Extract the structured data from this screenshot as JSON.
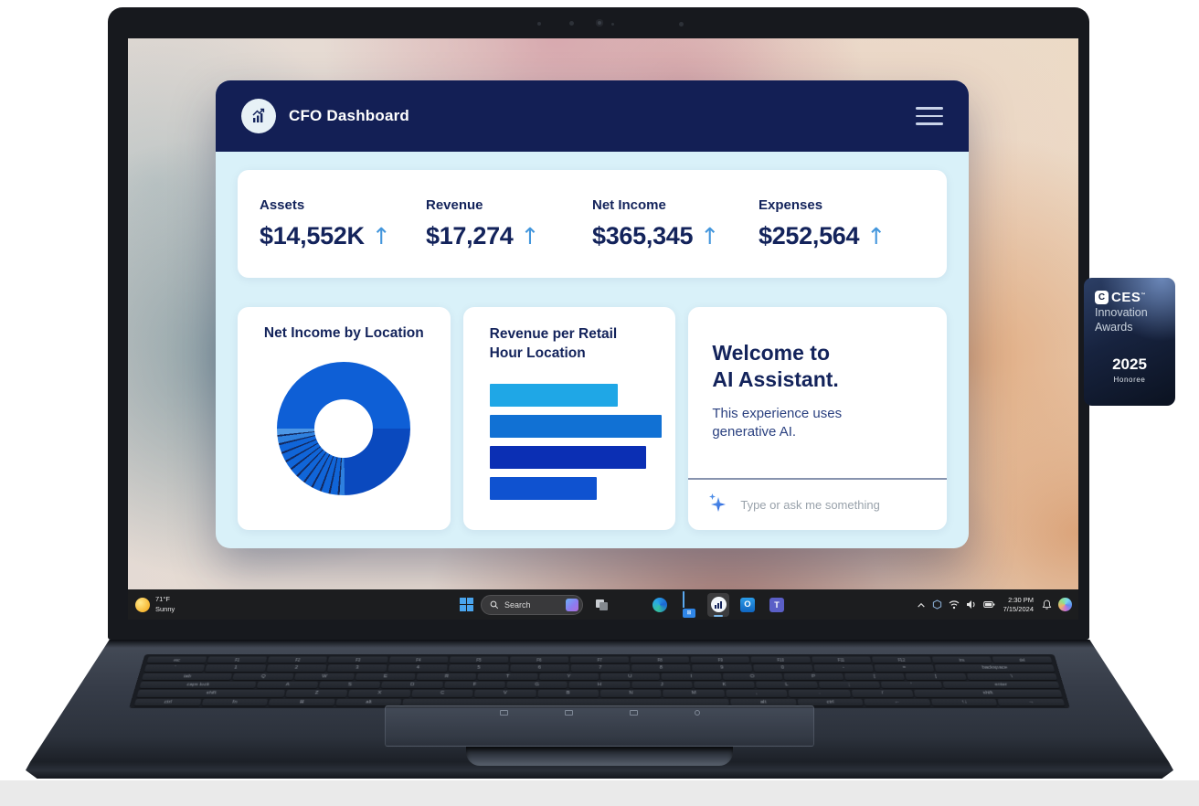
{
  "screen": {
    "app": {
      "title": "CFO Dashboard",
      "kpis": [
        {
          "label": "Assets",
          "value": "$14,552K",
          "trend": "up",
          "trend_icon": "↑"
        },
        {
          "label": "Revenue",
          "value": "$17,274",
          "trend": "up",
          "trend_icon": "↑"
        },
        {
          "label": "Net Income",
          "value": "$365,345",
          "trend": "up",
          "trend_icon": "↑"
        },
        {
          "label": "Expenses",
          "value": "$252,564",
          "trend": "up",
          "trend_icon": "↑"
        }
      ],
      "donut_card_title": "Net Income by Location",
      "bar_card_title_line1": "Revenue per Retail",
      "bar_card_title_line2": "Hour Location",
      "assistant": {
        "heading_line1": "Welcome to",
        "heading_line2": "AI Assistant.",
        "body": "This experience uses generative AI.",
        "input_placeholder": "Type or ask me something"
      }
    },
    "taskbar": {
      "weather": {
        "temp": "71°F",
        "condition": "Sunny"
      },
      "search_label": "Search",
      "store_glyph": "⊞",
      "outlook_glyph": "O",
      "teams_glyph": "T",
      "tray": {
        "time": "2:30 PM",
        "date": "7/15/2024"
      }
    }
  },
  "chart_data": [
    {
      "type": "pie",
      "variant": "donut",
      "title": "Net Income by Location",
      "value_labels_shown": false,
      "slices_pct": [
        {
          "label": "largest-location",
          "value": 50,
          "color": "#0E5FD6"
        },
        {
          "label": "second-location",
          "value": 24.7,
          "color": "#0A49BE"
        },
        {
          "label": "small-locations-group (about 12 thin slices)",
          "value": 25.3,
          "color": "#1065D8"
        }
      ],
      "conic_segments": [
        {
          "from": 0,
          "to": 90,
          "color": "#0E5FD6"
        },
        {
          "from": 90,
          "to": 179,
          "color": "#0A49BE"
        },
        {
          "from": 179,
          "to": 183.5,
          "color": "#2E80DE"
        },
        {
          "from": 183.5,
          "to": 185.2,
          "color": "#13295F"
        },
        {
          "from": 185.2,
          "to": 191.5,
          "color": "#1065D8"
        },
        {
          "from": 191.5,
          "to": 193.2,
          "color": "#13295F"
        },
        {
          "from": 193.2,
          "to": 199.5,
          "color": "#1065D8"
        },
        {
          "from": 199.5,
          "to": 201.2,
          "color": "#13295F"
        },
        {
          "from": 201.2,
          "to": 207.5,
          "color": "#1065D8"
        },
        {
          "from": 207.5,
          "to": 209.2,
          "color": "#13295F"
        },
        {
          "from": 209.2,
          "to": 215.5,
          "color": "#1065D8"
        },
        {
          "from": 215.5,
          "to": 217.2,
          "color": "#13295F"
        },
        {
          "from": 217.2,
          "to": 223.5,
          "color": "#1065D8"
        },
        {
          "from": 223.5,
          "to": 225.2,
          "color": "#13295F"
        },
        {
          "from": 225.2,
          "to": 231.5,
          "color": "#1065D8"
        },
        {
          "from": 231.5,
          "to": 233.2,
          "color": "#13295F"
        },
        {
          "from": 233.2,
          "to": 239.5,
          "color": "#1065D8"
        },
        {
          "from": 239.5,
          "to": 241.2,
          "color": "#13295F"
        },
        {
          "from": 241.2,
          "to": 247.5,
          "color": "#1065D8"
        },
        {
          "from": 247.5,
          "to": 249.2,
          "color": "#13295F"
        },
        {
          "from": 249.2,
          "to": 255.5,
          "color": "#1065D8"
        },
        {
          "from": 255.5,
          "to": 257.2,
          "color": "#13295F"
        },
        {
          "from": 257.2,
          "to": 263,
          "color": "#2E80DE"
        },
        {
          "from": 263,
          "to": 264.5,
          "color": "#13295F"
        },
        {
          "from": 264.5,
          "to": 270,
          "color": "#4D97E6"
        },
        {
          "from": 270,
          "to": 360,
          "color": "#0E5FD6"
        }
      ]
    },
    {
      "type": "bar",
      "orientation": "horizontal",
      "title": "Revenue per Retail Hour Location",
      "value_labels_shown": false,
      "bars": [
        {
          "label": "bar-1",
          "value_pct": 73,
          "color": "#1FA7E6"
        },
        {
          "label": "bar-2",
          "value_pct": 98,
          "color": "#1171D4"
        },
        {
          "label": "bar-3",
          "value_pct": 89,
          "color": "#0B2FB4"
        },
        {
          "label": "bar-4",
          "value_pct": 61,
          "color": "#0F52D0"
        }
      ]
    }
  ],
  "badge": {
    "brand": "CES",
    "c_glyph": "C",
    "tm": "™",
    "line1": "Innovation",
    "line2": "Awards",
    "year": "2025",
    "designation": "Honoree"
  },
  "keyboard": {
    "rows": [
      [
        {
          "k": "esc"
        },
        {
          "k": "F1"
        },
        {
          "k": "F2"
        },
        {
          "k": "F3"
        },
        {
          "k": "F4"
        },
        {
          "k": "F5"
        },
        {
          "k": "F6"
        },
        {
          "k": "F7"
        },
        {
          "k": "F8"
        },
        {
          "k": "F9"
        },
        {
          "k": "F10"
        },
        {
          "k": "F11"
        },
        {
          "k": "F12"
        },
        {
          "k": "ins"
        },
        {
          "k": "del"
        }
      ],
      [
        {
          "k": "`"
        },
        {
          "k": "1"
        },
        {
          "k": "2"
        },
        {
          "k": "3"
        },
        {
          "k": "4"
        },
        {
          "k": "5"
        },
        {
          "k": "6"
        },
        {
          "k": "7"
        },
        {
          "k": "8"
        },
        {
          "k": "9"
        },
        {
          "k": "0"
        },
        {
          "k": "-"
        },
        {
          "k": "="
        },
        {
          "k": "backspace",
          "w": 2
        }
      ],
      [
        {
          "k": "tab",
          "w": 1.5
        },
        {
          "k": "Q"
        },
        {
          "k": "W"
        },
        {
          "k": "E"
        },
        {
          "k": "R"
        },
        {
          "k": "T"
        },
        {
          "k": "Y"
        },
        {
          "k": "U"
        },
        {
          "k": "I"
        },
        {
          "k": "O"
        },
        {
          "k": "P"
        },
        {
          "k": "["
        },
        {
          "k": "]"
        },
        {
          "k": "\\",
          "w": 1.5
        }
      ],
      [
        {
          "k": "caps lock",
          "w": 1.9
        },
        {
          "k": "A"
        },
        {
          "k": "S"
        },
        {
          "k": "D"
        },
        {
          "k": "F"
        },
        {
          "k": "G"
        },
        {
          "k": "H"
        },
        {
          "k": "J"
        },
        {
          "k": "K"
        },
        {
          "k": "L"
        },
        {
          "k": ";"
        },
        {
          "k": "'"
        },
        {
          "k": "enter",
          "w": 1.9
        }
      ],
      [
        {
          "k": "shift",
          "w": 2.4
        },
        {
          "k": "Z"
        },
        {
          "k": "X"
        },
        {
          "k": "C"
        },
        {
          "k": "V"
        },
        {
          "k": "B"
        },
        {
          "k": "N"
        },
        {
          "k": "M"
        },
        {
          "k": ","
        },
        {
          "k": "."
        },
        {
          "k": "/"
        },
        {
          "k": "shift",
          "w": 2.4
        }
      ],
      [
        {
          "k": "ctrl",
          "w": 1.2
        },
        {
          "k": "fn",
          "w": 1.2
        },
        {
          "k": "⊞",
          "w": 1.2
        },
        {
          "k": "alt",
          "w": 1.2
        },
        {
          "k": "",
          "w": 6
        },
        {
          "k": "alt",
          "w": 1.2
        },
        {
          "k": "ctrl",
          "w": 1.2
        },
        {
          "k": "←",
          "w": 1.2
        },
        {
          "k": "↑↓",
          "w": 1.2
        },
        {
          "k": "→",
          "w": 1.2
        }
      ]
    ]
  },
  "colors": {
    "header_navy": "#131F55",
    "text_navy": "#13235B",
    "app_body_bg": "#D9F1F9",
    "arrow_blue": "#4396DC"
  }
}
